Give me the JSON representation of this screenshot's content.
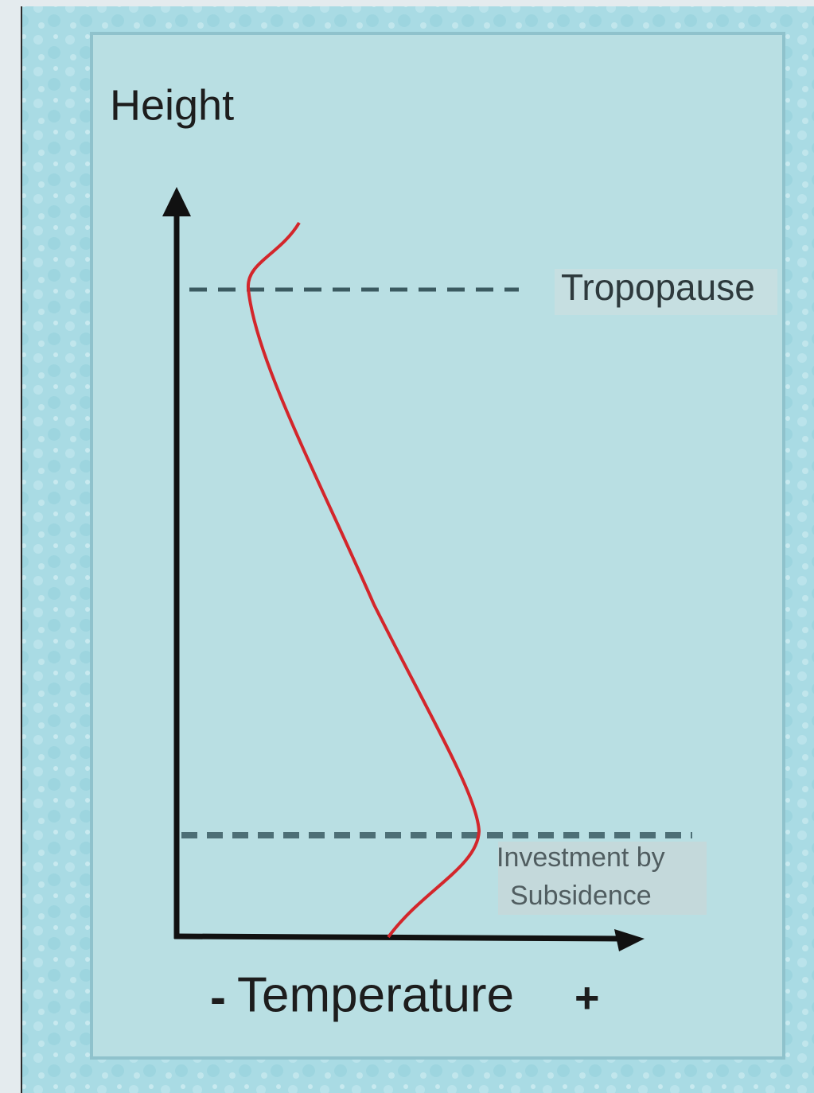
{
  "axes": {
    "y_label": "Height",
    "x_label": "Temperature",
    "x_minus": "-",
    "x_plus": "+"
  },
  "annotations": [
    {
      "lines": [
        "Tropopause"
      ]
    },
    {
      "lines": [
        "Investment by",
        "Subsidence"
      ]
    }
  ]
}
